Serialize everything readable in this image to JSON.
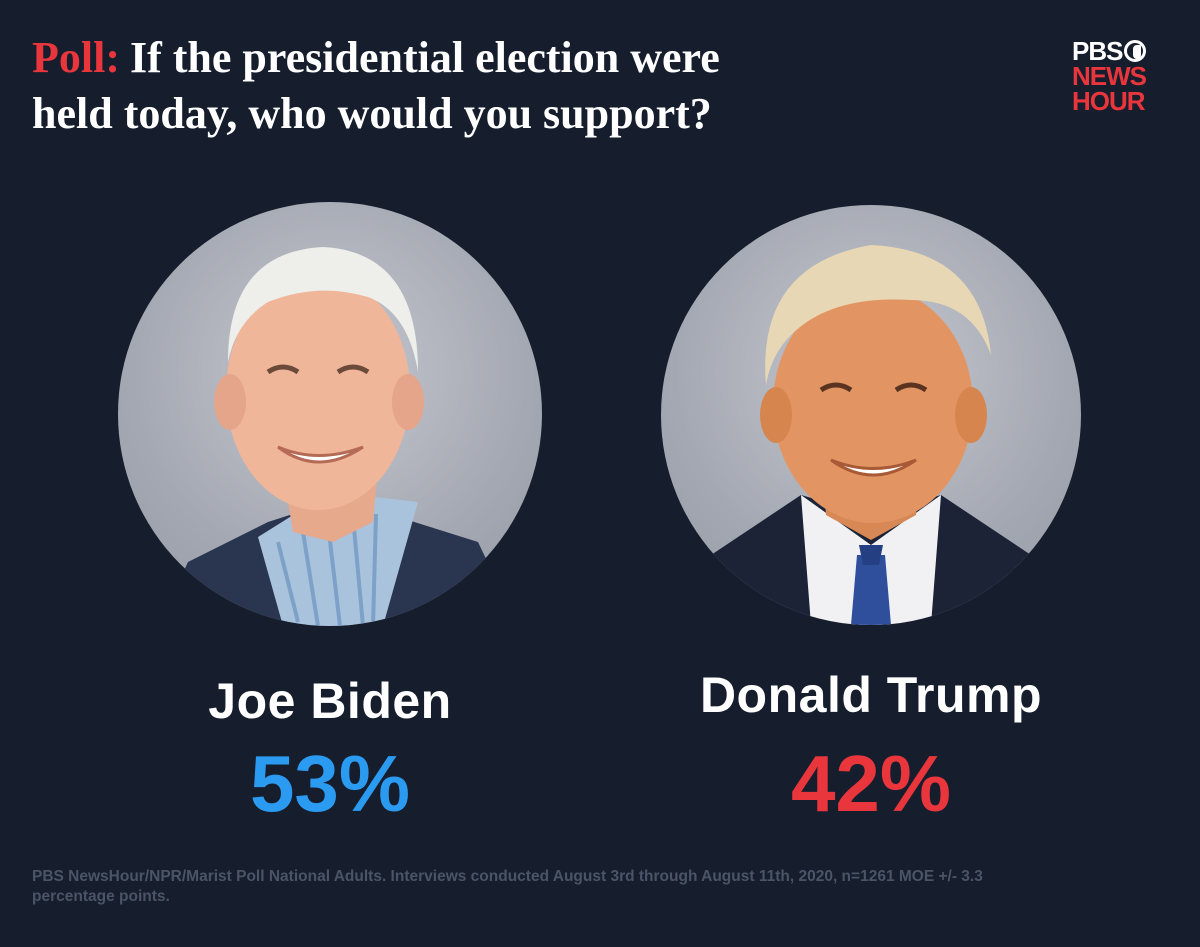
{
  "header": {
    "kicker": "Poll:",
    "question_line1": "If the presidential election were",
    "question_line2": "held today, who would you support?"
  },
  "logo": {
    "line1": "PBS",
    "line2": "NEWS",
    "line3": "HOUR"
  },
  "candidates": [
    {
      "name": "Joe Biden",
      "percent": "53%",
      "color": "#2b9bf2"
    },
    {
      "name": "Donald Trump",
      "percent": "42%",
      "color": "#e8363c"
    }
  ],
  "colors": {
    "background": "#161e2d",
    "accent": "#e8363c"
  },
  "footer": {
    "source": "PBS NewsHour/NPR/Marist Poll National Adults. Interviews conducted August 3rd through August 11th, 2020, n=1261 MOE +/- 3.3 percentage points."
  }
}
